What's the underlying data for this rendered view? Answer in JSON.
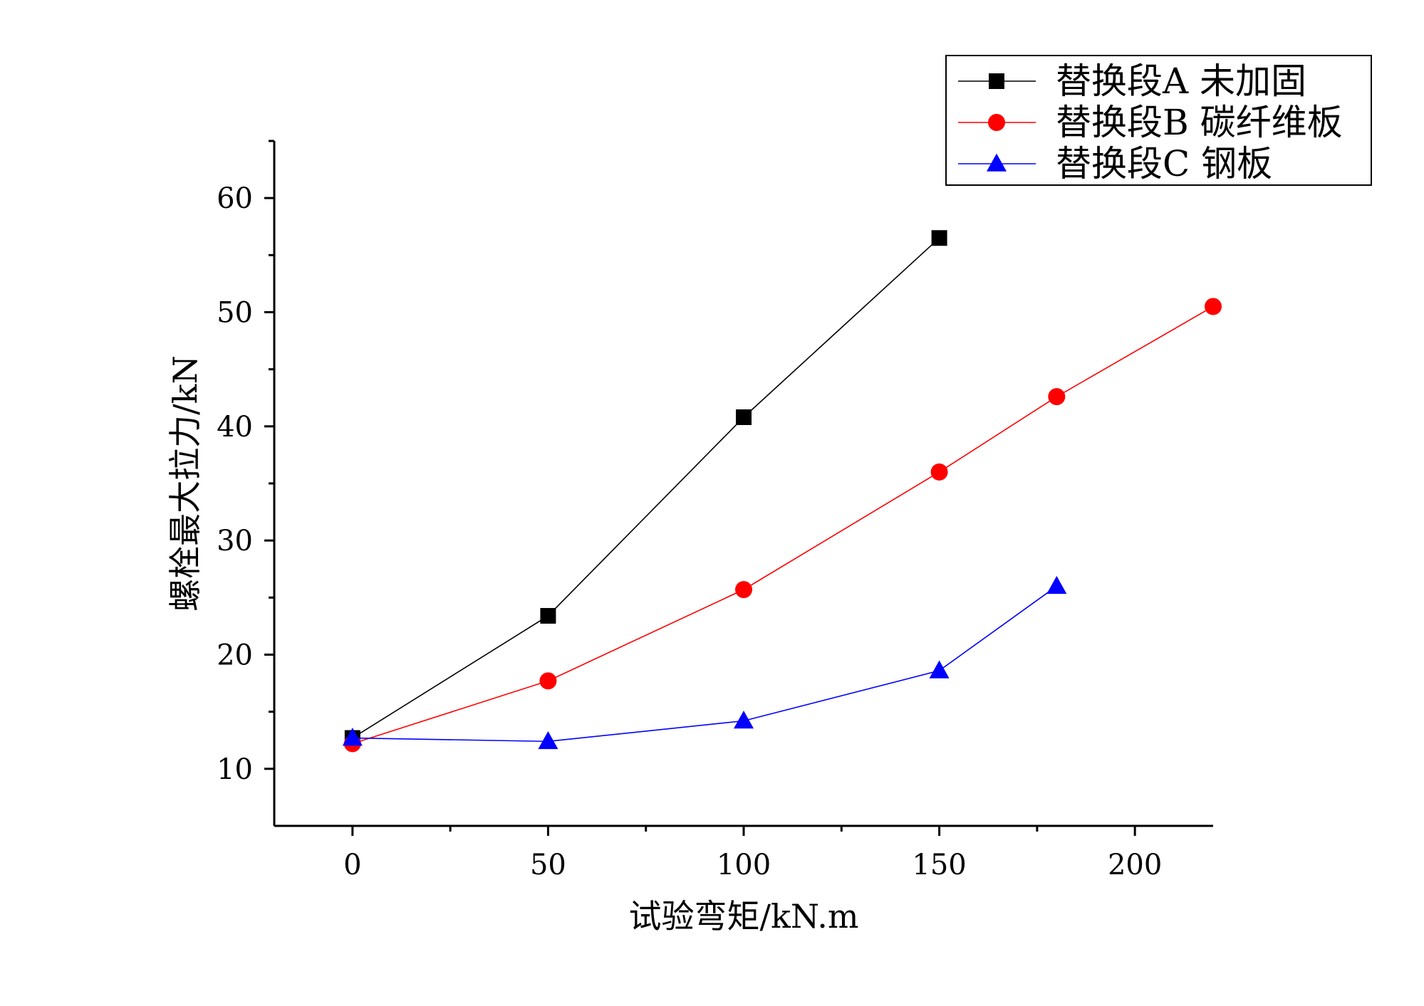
{
  "chart_data": {
    "type": "line",
    "title": "",
    "xlabel": "试验弯矩/kN.m",
    "ylabel": "螺栓最大拉力/kN",
    "xlim": [
      -20,
      220
    ],
    "ylim": [
      5,
      65
    ],
    "xticks": [
      0,
      50,
      100,
      150,
      200
    ],
    "yticks": [
      10,
      20,
      30,
      40,
      50,
      60
    ],
    "grid": false,
    "legend_position": "top-right",
    "series": [
      {
        "name": "替换段A 未加固",
        "color": "#000000",
        "marker": "square",
        "x": [
          0,
          50,
          100,
          150
        ],
        "y": [
          12.7,
          23.4,
          40.8,
          56.5
        ]
      },
      {
        "name": "替换段B 碳纤维板",
        "color": "#ff0000",
        "marker": "circle",
        "x": [
          0,
          50,
          100,
          150,
          180,
          220
        ],
        "y": [
          12.2,
          17.7,
          25.7,
          36.0,
          42.6,
          50.5
        ]
      },
      {
        "name": "替换段C 钢板",
        "color": "#0000ff",
        "marker": "triangle",
        "x": [
          0,
          50,
          100,
          150,
          180
        ],
        "y": [
          12.7,
          12.4,
          14.2,
          18.6,
          26.0
        ]
      }
    ]
  }
}
